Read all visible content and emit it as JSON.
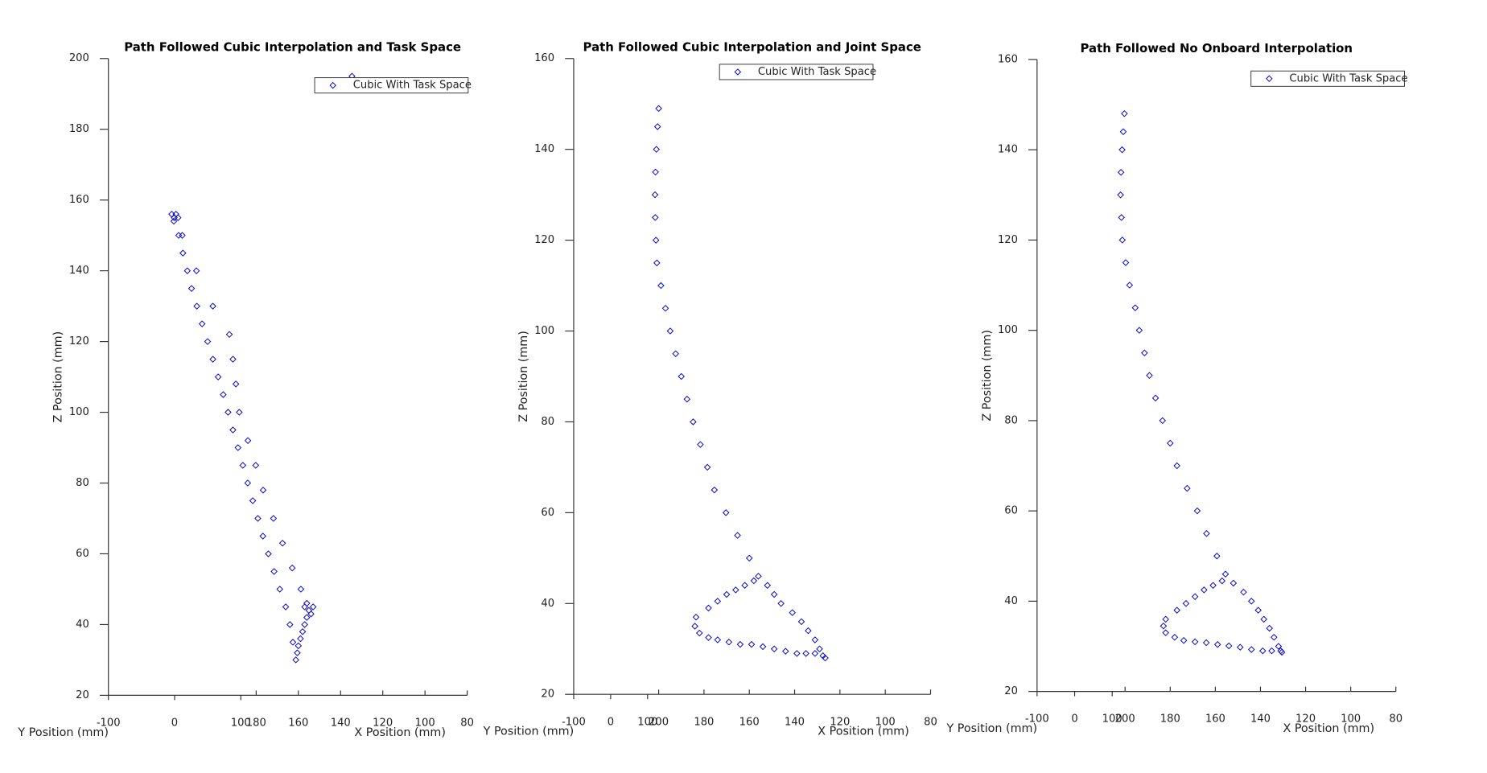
{
  "chart_data": [
    {
      "type": "scatter",
      "title": "Path Followed Cubic Interpolation and Task Space",
      "xlabel": "X Position (mm)",
      "x2label": "Y Position (mm)",
      "ylabel": "Z Position (mm)",
      "xlim": [
        250,
        80
      ],
      "xticks": [
        180,
        160,
        140,
        120,
        100,
        80
      ],
      "x2lim": [
        -100,
        442
      ],
      "x2ticks": [
        -100,
        0,
        100
      ],
      "ylim": [
        20,
        200
      ],
      "yticks": [
        20,
        40,
        60,
        80,
        100,
        120,
        140,
        160,
        180,
        200
      ],
      "legend": "northeast",
      "series": [
        {
          "name": "Cubic With Task Space",
          "color": "#0000cc",
          "x": [
            218.8,
            216.7,
            214.7,
            212.6,
            210.6,
            208.1,
            205.6,
            203,
            200.5,
            198,
            195.6,
            193.3,
            191,
            188.6,
            186.3,
            184,
            181.6,
            179.2,
            176.8,
            174.2,
            171.5,
            168.8,
            166,
            164,
            162.6,
            161.2,
            215,
            208.3,
            200.5,
            192.7,
            191,
            189.6,
            188,
            183.9,
            180.2,
            176.7,
            171.8,
            167.5,
            162.9,
            158.8,
            156,
            155,
            153,
            154,
            156,
            157,
            158,
            159,
            160,
            160.5,
            157,
            218,
            220,
            219,
            217,
            134.6
          ],
          "values": [
            155,
            150,
            145,
            140,
            135,
            130,
            125,
            120,
            115,
            110,
            105,
            100,
            95,
            90,
            85,
            80,
            75,
            70,
            65,
            60,
            55,
            50,
            45,
            40,
            35,
            30,
            150,
            140,
            130,
            122,
            115,
            108,
            100,
            92,
            85,
            78,
            70,
            63,
            56,
            50,
            46,
            44,
            45,
            43,
            42,
            40,
            38,
            36,
            34,
            32,
            45,
            156,
            156,
            154,
            155,
            195
          ]
        }
      ]
    },
    {
      "type": "scatter",
      "title": "Path Followed Cubic Interpolation and Joint Space",
      "xlabel": "X Position (mm)",
      "x2label": "Y Position (mm)",
      "ylabel": "Z Position (mm)",
      "xlim": [
        237.5,
        80
      ],
      "xticks": [
        200,
        180,
        160,
        140,
        120,
        100,
        80
      ],
      "x2lim": [
        -100,
        866
      ],
      "x2ticks": [
        -100,
        0,
        100
      ],
      "ylim": [
        20,
        160
      ],
      "yticks": [
        20,
        40,
        60,
        80,
        100,
        120,
        140,
        160
      ],
      "legend": "northeast",
      "series": [
        {
          "name": "Cubic With Task Space",
          "color": "#0000cc",
          "x": [
            200,
            200.5,
            201,
            201.4,
            201.6,
            201.5,
            201.2,
            200.8,
            199,
            197,
            194.9,
            192.5,
            190,
            187.5,
            184.8,
            181.6,
            178.5,
            175.4,
            170.3,
            165.2,
            160,
            156,
            152,
            149,
            146,
            141,
            137,
            134,
            131,
            129,
            127.5,
            126.5,
            131,
            135,
            139,
            144,
            149,
            154,
            159,
            164,
            169,
            174,
            178,
            182,
            184,
            183.5,
            178,
            174,
            170,
            166,
            162,
            158
          ],
          "values": [
            149,
            145,
            140,
            135,
            130,
            125,
            120,
            115,
            110,
            105,
            100,
            95,
            90,
            85,
            80,
            75,
            70,
            65,
            60,
            55,
            50,
            46,
            44,
            42,
            40,
            38,
            36,
            34,
            32,
            30,
            28.5,
            28,
            29,
            29,
            29,
            29.5,
            30,
            30.5,
            31,
            31,
            31.5,
            32,
            32.5,
            33.5,
            35,
            37,
            39,
            40.5,
            42,
            43,
            44,
            45
          ]
        }
      ]
    },
    {
      "type": "scatter",
      "title": "Path Followed No Onboard Interpolation",
      "xlabel": "X Position (mm)",
      "x2label": "Y Position (mm)",
      "ylabel": "Z Position (mm)",
      "xlim": [
        239,
        80
      ],
      "xticks": [
        200,
        180,
        160,
        140,
        120,
        100,
        80
      ],
      "x2lim": [
        -100,
        855
      ],
      "x2ticks": [
        -100,
        0,
        100
      ],
      "ylim": [
        20,
        160
      ],
      "yticks": [
        20,
        40,
        60,
        80,
        100,
        120,
        140,
        160
      ],
      "legend": "northeast",
      "series": [
        {
          "name": "Cubic With Task Space",
          "color": "#0000cc",
          "x": [
            200.3,
            200.8,
            201.3,
            201.8,
            202,
            201.6,
            201.2,
            199.7,
            198,
            195.5,
            193.7,
            191.4,
            189.2,
            186.5,
            183.4,
            180,
            177,
            172.5,
            168,
            163.9,
            159.3,
            155.5,
            152,
            147.5,
            144,
            141,
            138.5,
            136,
            134,
            132,
            131,
            130.5,
            135,
            139,
            144,
            149,
            154,
            159,
            164,
            169,
            174,
            178,
            182,
            183,
            182,
            177,
            173,
            169,
            165,
            161,
            157
          ],
          "values": [
            148,
            144,
            140,
            135,
            130,
            125,
            120,
            115,
            110,
            105,
            100,
            95,
            90,
            85,
            80,
            75,
            70,
            65,
            60,
            55,
            50,
            46,
            44,
            42,
            40,
            38,
            36,
            34,
            32,
            30,
            29,
            28.7,
            29,
            29,
            29.3,
            29.8,
            30.1,
            30.4,
            30.8,
            31,
            31.3,
            32,
            33,
            34.5,
            36,
            38,
            39.5,
            41,
            42.5,
            43.5,
            44.5
          ]
        }
      ]
    }
  ]
}
